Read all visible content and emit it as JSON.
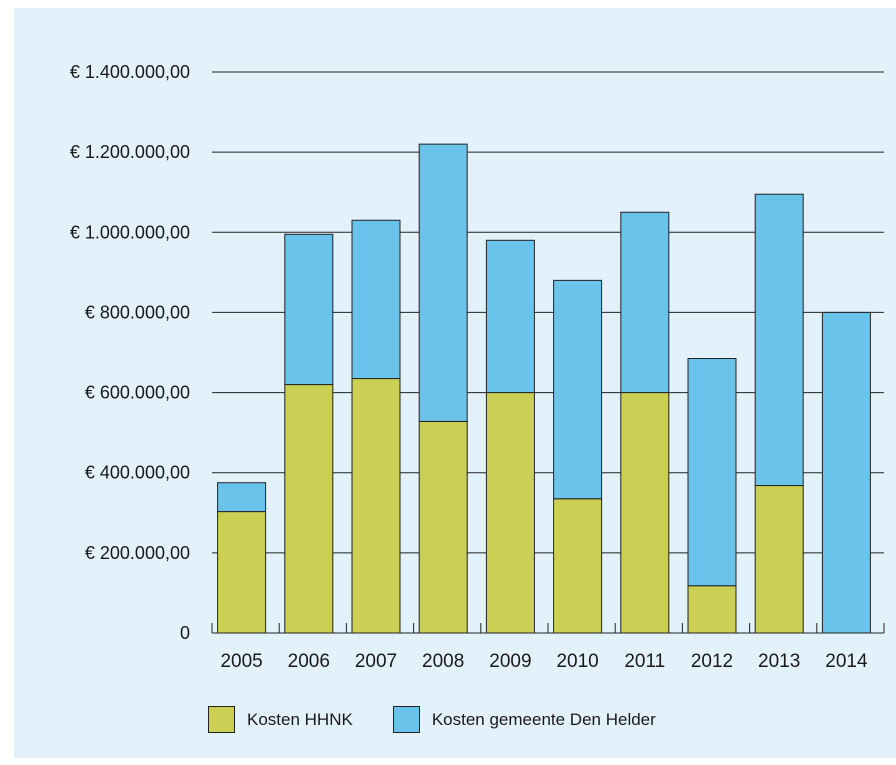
{
  "colors": {
    "hhnk": "#cbd054",
    "den_helder": "#6ac3ea",
    "background": "#e2f1fa",
    "line": "#222222"
  },
  "legend": {
    "hhnk_label": "Kosten HHNK",
    "den_helder_label": "Kosten gemeente Den Helder"
  },
  "chart_data": {
    "type": "bar",
    "stacked": true,
    "categories": [
      "2005",
      "2006",
      "2007",
      "2008",
      "2009",
      "2010",
      "2011",
      "2012",
      "2013",
      "2014"
    ],
    "series": [
      {
        "name": "Kosten HHNK",
        "values": [
          303000,
          620000,
          635000,
          528000,
          600000,
          335000,
          600000,
          118000,
          368000,
          0
        ]
      },
      {
        "name": "Kosten gemeente Den Helder",
        "values": [
          72000,
          375000,
          395000,
          692000,
          380000,
          545000,
          450000,
          567000,
          727000,
          800000
        ]
      }
    ],
    "ylim": [
      0,
      1400000
    ],
    "yticks": [
      0,
      200000,
      400000,
      600000,
      800000,
      1000000,
      1200000,
      1400000
    ],
    "ytick_labels": [
      "0",
      "€ 200.000,00",
      "€ 400.000,00",
      "€ 600.000,00",
      "€ 800.000,00",
      "€ 1.000.000,00",
      "€ 1.200.000,00",
      "€ 1.400.000,00"
    ],
    "grid": true,
    "legend_position": "bottom",
    "title": "",
    "xlabel": "",
    "ylabel": ""
  }
}
